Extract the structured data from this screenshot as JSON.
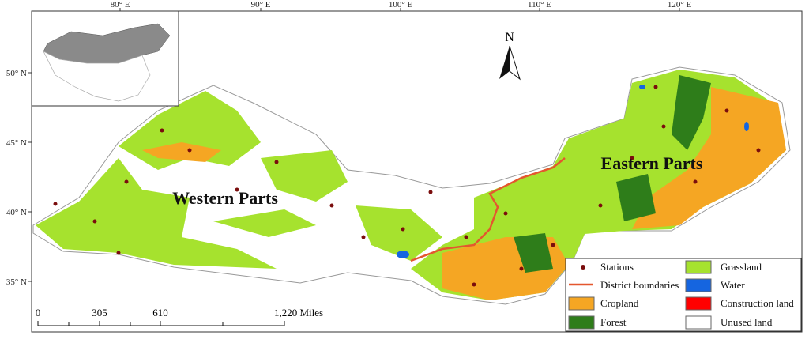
{
  "map": {
    "lon_labels": [
      "80° E",
      "90° E",
      "100° E",
      "110° E",
      "120° E"
    ],
    "lat_labels": [
      "50° N",
      "45° N",
      "40° N",
      "35° N"
    ],
    "regions": [
      "Western Parts",
      "Eastern Parts"
    ],
    "north": "N",
    "scale_labels": [
      "0",
      "305",
      "610",
      "1,220 Miles"
    ],
    "legend": [
      "Stations",
      "District boundaries",
      "Cropland",
      "Forest",
      "Grassland",
      "Water",
      "Construction land",
      "Unused land"
    ]
  }
}
